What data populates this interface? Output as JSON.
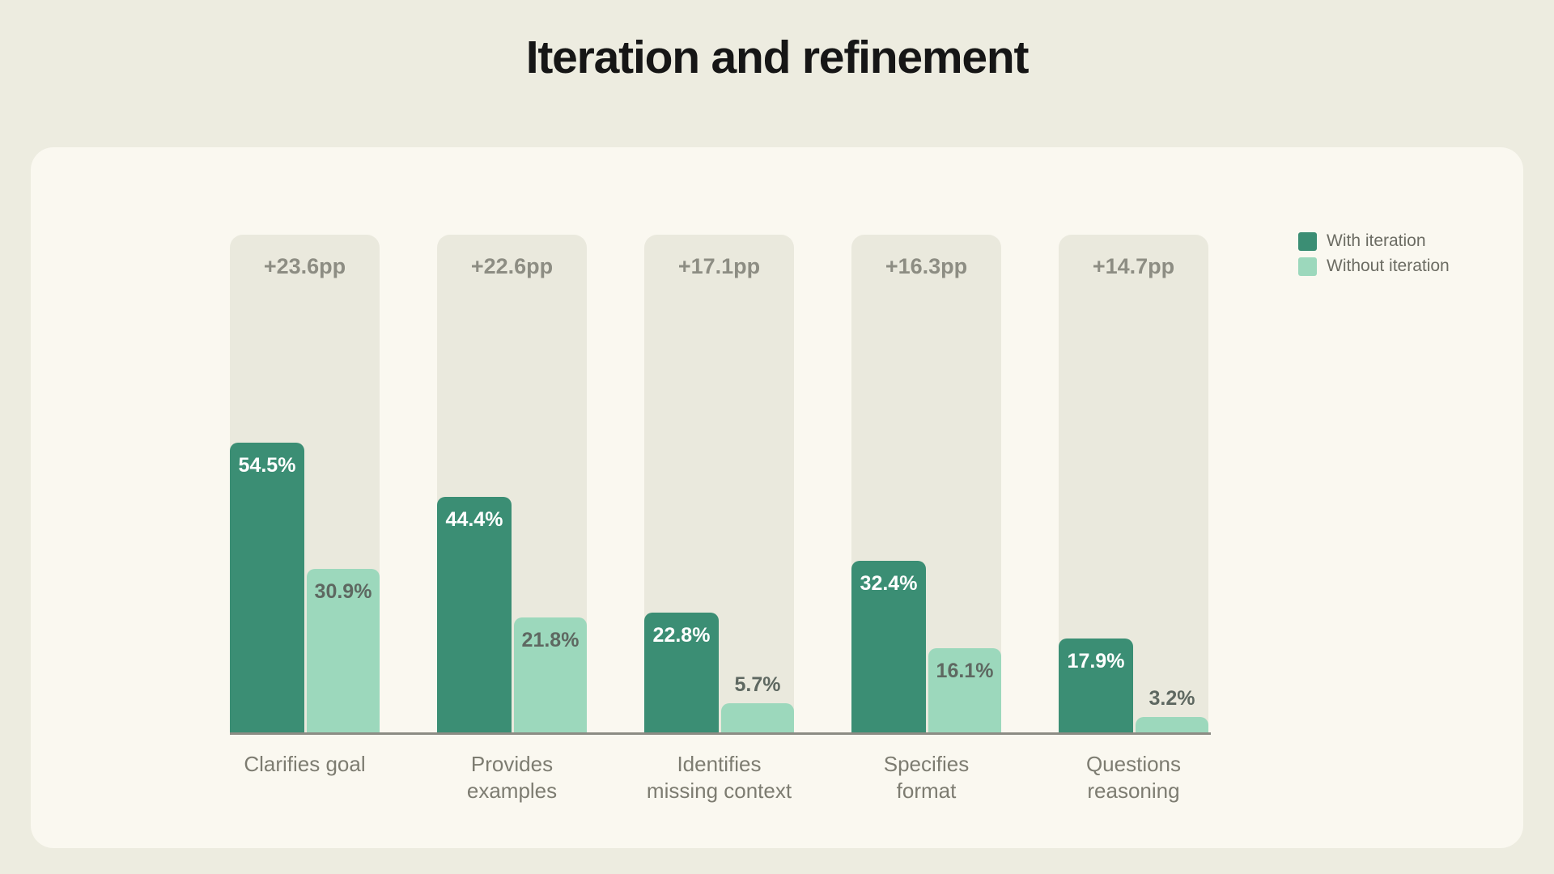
{
  "page": {
    "title": "Iteration and refinement"
  },
  "colors": {
    "page_background": "#EDECE0",
    "card_background": "#FAF8F0",
    "track_background": "#EAE9DD",
    "with_iteration": "#3B8E74",
    "without_iteration": "#9CD8BC",
    "delta_text": "#8D8D83",
    "category_text": "#7D7C71",
    "value_on_light_text": "#5E6861",
    "value_on_dark_text": "#FFFFFF",
    "axis_line": "#8C8C84",
    "legend_text": "#6C6C63",
    "title_text": "#161616"
  },
  "legend": {
    "items": [
      {
        "label": "With iteration",
        "color": "#3B8E74"
      },
      {
        "label": "Without iteration",
        "color": "#9CD8BC"
      }
    ]
  },
  "chart_data": {
    "type": "bar",
    "title": "Iteration and refinement",
    "categories": [
      "Clarifies goal",
      "Provides examples",
      "Identifies missing context",
      "Specifies format",
      "Questions reasoning"
    ],
    "series": [
      {
        "name": "With iteration",
        "color": "#3B8E74",
        "values": [
          54.5,
          44.4,
          22.8,
          32.4,
          17.9
        ]
      },
      {
        "name": "Without iteration",
        "color": "#9CD8BC",
        "values": [
          30.9,
          21.8,
          5.7,
          16.1,
          3.2
        ]
      }
    ],
    "delta_labels": [
      "+23.6pp",
      "+22.6pp",
      "+17.1pp",
      "+16.3pp",
      "+14.7pp"
    ],
    "value_suffix": "%",
    "ylim": [
      0,
      100
    ],
    "grid": false,
    "legend_position": "top-right"
  }
}
